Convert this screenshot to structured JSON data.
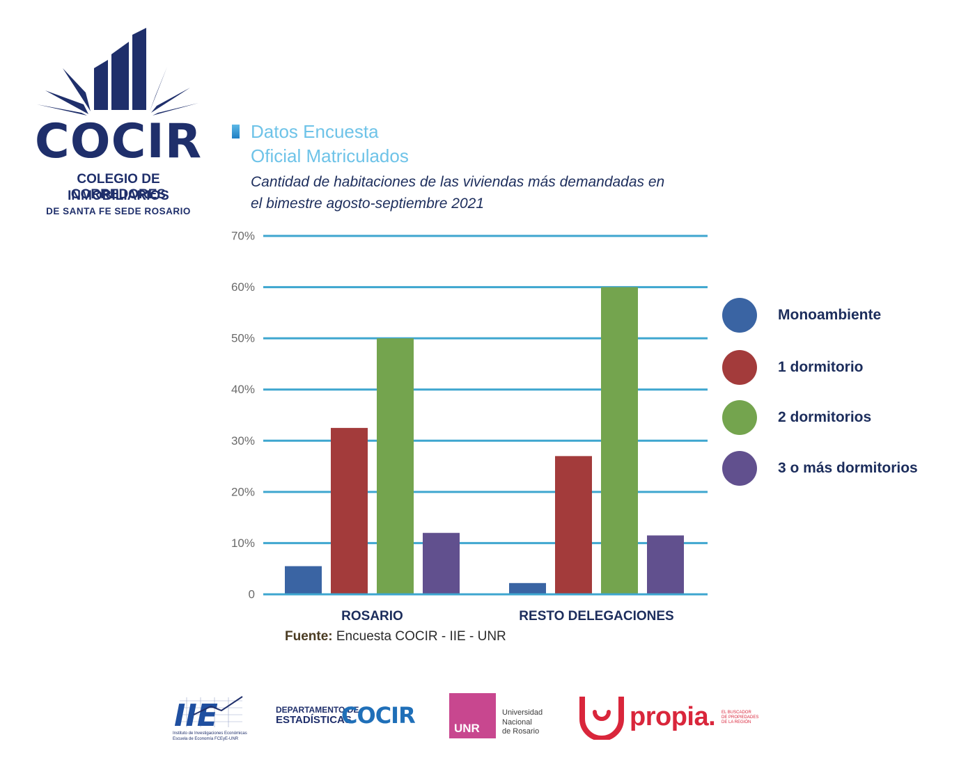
{
  "logo": {
    "wordmark": "COCIR",
    "line1": "COLEGIO DE CORREDORES",
    "line2": "INMOBILIARIOS",
    "line3": "DE SANTA FE SEDE ROSARIO"
  },
  "heading": {
    "title_line1": "Datos Encuesta",
    "title_line2": "Oficial Matriculados",
    "subtitle_line1": "Cantidad de habitaciones de las viviendas más demandadas en",
    "subtitle_line2": "el bimestre agosto-septiembre 2021"
  },
  "source": {
    "label": "Fuente:",
    "text": " Encuesta COCIR - IIE - UNR"
  },
  "chart_data": {
    "type": "bar",
    "categories": [
      "ROSARIO",
      "RESTO DELEGACIONES"
    ],
    "series": [
      {
        "name": "Monoambiente",
        "color": "#3a64a3",
        "values": [
          5.5,
          2.2
        ]
      },
      {
        "name": "1 dormitorio",
        "color": "#a33b3b",
        "values": [
          32.5,
          27
        ]
      },
      {
        "name": "2 dormitorios",
        "color": "#74a44e",
        "values": [
          50,
          60
        ]
      },
      {
        "name": "3 o más dormitorios",
        "color": "#61508e",
        "values": [
          12,
          11.5
        ]
      }
    ],
    "y_ticks": [
      "0",
      "10%",
      "20%",
      "30%",
      "40%",
      "50%",
      "60%",
      "70%"
    ],
    "ylim": [
      0,
      70
    ],
    "grid": true,
    "grid_color": "#3ea6cf",
    "legend_position": "right"
  },
  "footer": {
    "iie_mark": "IIE",
    "iie_caption1": "Instituto de Investigaciones Económicas",
    "iie_caption2": "Escuela de Economía FCEyE-UNR",
    "dept_line1": "DEPARTAMENTO DE",
    "dept_line2": "ESTADÍSTICAS",
    "dept_brand": "COCIR",
    "unr_box": "UNR",
    "unr_line1": "Universidad",
    "unr_line2": "Nacional",
    "unr_line3": "de Rosario",
    "propia_word": "propia.",
    "propia_tag1": "EL BUSCADOR",
    "propia_tag2": "DE PROPIEDADES",
    "propia_tag3": "DE LA REGIÓN"
  }
}
